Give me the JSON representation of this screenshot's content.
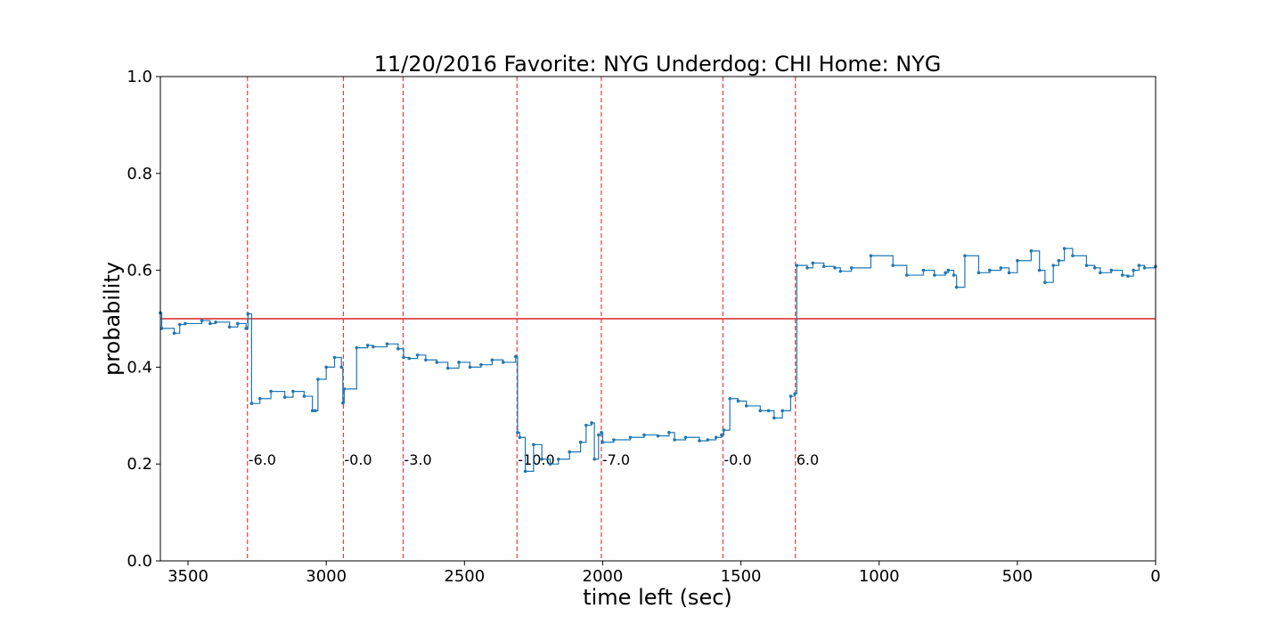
{
  "colors": {
    "series": "#1f77b4",
    "reference_line": "#d62728",
    "score_line": "#e8413c",
    "axis": "#000000",
    "background": "#ffffff"
  },
  "chart_data": {
    "type": "line",
    "title": "11/20/2016 Favorite: NYG Underdog: CHI Home: NYG",
    "xlabel": "time left (sec)",
    "ylabel": "probability",
    "xlim": [
      3600,
      0
    ],
    "ylim": [
      0.0,
      1.0
    ],
    "x_ticks": [
      3500,
      3000,
      2500,
      2000,
      1500,
      1000,
      500,
      0
    ],
    "x_tick_labels": [
      "3500",
      "3000",
      "2500",
      "2000",
      "1500",
      "1000",
      "500",
      "0"
    ],
    "y_ticks": [
      0.0,
      0.2,
      0.4,
      0.6,
      0.8,
      1.0
    ],
    "y_tick_labels": [
      "0.0",
      "0.2",
      "0.4",
      "0.6",
      "0.8",
      "1.0"
    ],
    "grid": false,
    "reference_line_y": 0.5,
    "score_events": [
      {
        "x": 3285,
        "label": "-6.0"
      },
      {
        "x": 2938,
        "label": "-0.0"
      },
      {
        "x": 2722,
        "label": "-3.0"
      },
      {
        "x": 2310,
        "label": "-10.0"
      },
      {
        "x": 2005,
        "label": "-7.0"
      },
      {
        "x": 1565,
        "label": "-0.0"
      },
      {
        "x": 1303,
        "label": "6.0"
      }
    ],
    "score_label_y": 0.2,
    "series": [
      {
        "x": [
          3600,
          3595,
          3550,
          3530,
          3510,
          3450,
          3420,
          3400,
          3350,
          3320,
          3290,
          3283,
          3270,
          3240,
          3200,
          3150,
          3120,
          3080,
          3050,
          3040,
          3030,
          3000,
          2970,
          2945,
          2940,
          2935,
          2890,
          2850,
          2830,
          2780,
          2740,
          2720,
          2700,
          2670,
          2640,
          2600,
          2560,
          2520,
          2480,
          2440,
          2400,
          2360,
          2315,
          2308,
          2300,
          2280,
          2250,
          2220,
          2190,
          2160,
          2120,
          2080,
          2060,
          2040,
          2030,
          2015,
          2005,
          2000,
          1960,
          1900,
          1850,
          1800,
          1760,
          1740,
          1700,
          1650,
          1620,
          1590,
          1570,
          1562,
          1540,
          1510,
          1480,
          1430,
          1400,
          1380,
          1350,
          1320,
          1305,
          1298,
          1260,
          1240,
          1200,
          1160,
          1140,
          1100,
          1030,
          950,
          900,
          840,
          800,
          760,
          750,
          730,
          720,
          690,
          640,
          600,
          560,
          530,
          500,
          450,
          420,
          400,
          370,
          350,
          330,
          300,
          250,
          220,
          200,
          160,
          120,
          100,
          80,
          60,
          40,
          0
        ],
        "y": [
          0.512,
          0.48,
          0.47,
          0.488,
          0.49,
          0.496,
          0.49,
          0.493,
          0.483,
          0.49,
          0.48,
          0.51,
          0.325,
          0.335,
          0.35,
          0.338,
          0.35,
          0.34,
          0.31,
          0.31,
          0.375,
          0.4,
          0.42,
          0.4,
          0.326,
          0.355,
          0.44,
          0.445,
          0.442,
          0.448,
          0.438,
          0.42,
          0.418,
          0.425,
          0.415,
          0.41,
          0.398,
          0.41,
          0.4,
          0.405,
          0.415,
          0.41,
          0.422,
          0.265,
          0.255,
          0.185,
          0.24,
          0.21,
          0.2,
          0.21,
          0.225,
          0.245,
          0.28,
          0.285,
          0.21,
          0.26,
          0.265,
          0.245,
          0.25,
          0.255,
          0.26,
          0.258,
          0.265,
          0.25,
          0.255,
          0.248,
          0.25,
          0.255,
          0.26,
          0.27,
          0.335,
          0.33,
          0.32,
          0.31,
          0.31,
          0.295,
          0.31,
          0.34,
          0.345,
          0.61,
          0.605,
          0.615,
          0.608,
          0.605,
          0.598,
          0.605,
          0.63,
          0.61,
          0.59,
          0.6,
          0.59,
          0.595,
          0.6,
          0.59,
          0.565,
          0.63,
          0.595,
          0.6,
          0.605,
          0.595,
          0.62,
          0.64,
          0.6,
          0.575,
          0.61,
          0.62,
          0.645,
          0.63,
          0.61,
          0.605,
          0.595,
          0.6,
          0.59,
          0.588,
          0.6,
          0.61,
          0.605,
          0.608
        ]
      }
    ]
  }
}
